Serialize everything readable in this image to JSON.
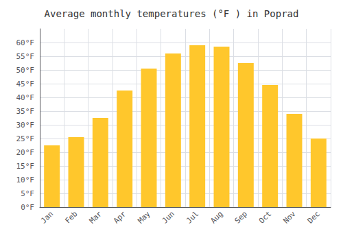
{
  "chart_data": {
    "type": "bar",
    "title": "Average monthly temperatures (°F ) in Poprad",
    "categories": [
      "Jan",
      "Feb",
      "Mar",
      "Apr",
      "May",
      "Jun",
      "Jul",
      "Aug",
      "Sep",
      "Oct",
      "Nov",
      "Dec"
    ],
    "values": [
      22.5,
      25.5,
      32.5,
      42.5,
      50.5,
      56.0,
      59.0,
      58.5,
      52.5,
      44.5,
      34.0,
      25.0
    ],
    "color": "#FFC72C",
    "ylim": [
      0,
      65
    ],
    "yticks": [
      {
        "value": 0,
        "label": "0°F"
      },
      {
        "value": 5,
        "label": "5°F"
      },
      {
        "value": 10,
        "label": "10°F"
      },
      {
        "value": 15,
        "label": "15°F"
      },
      {
        "value": 20,
        "label": "20°F"
      },
      {
        "value": 25,
        "label": "25°F"
      },
      {
        "value": 30,
        "label": "30°F"
      },
      {
        "value": 35,
        "label": "35°F"
      },
      {
        "value": 40,
        "label": "40°F"
      },
      {
        "value": 45,
        "label": "45°F"
      },
      {
        "value": 50,
        "label": "50°F"
      },
      {
        "value": 55,
        "label": "55°F"
      },
      {
        "value": 60,
        "label": "60°F"
      }
    ],
    "grid": true
  }
}
